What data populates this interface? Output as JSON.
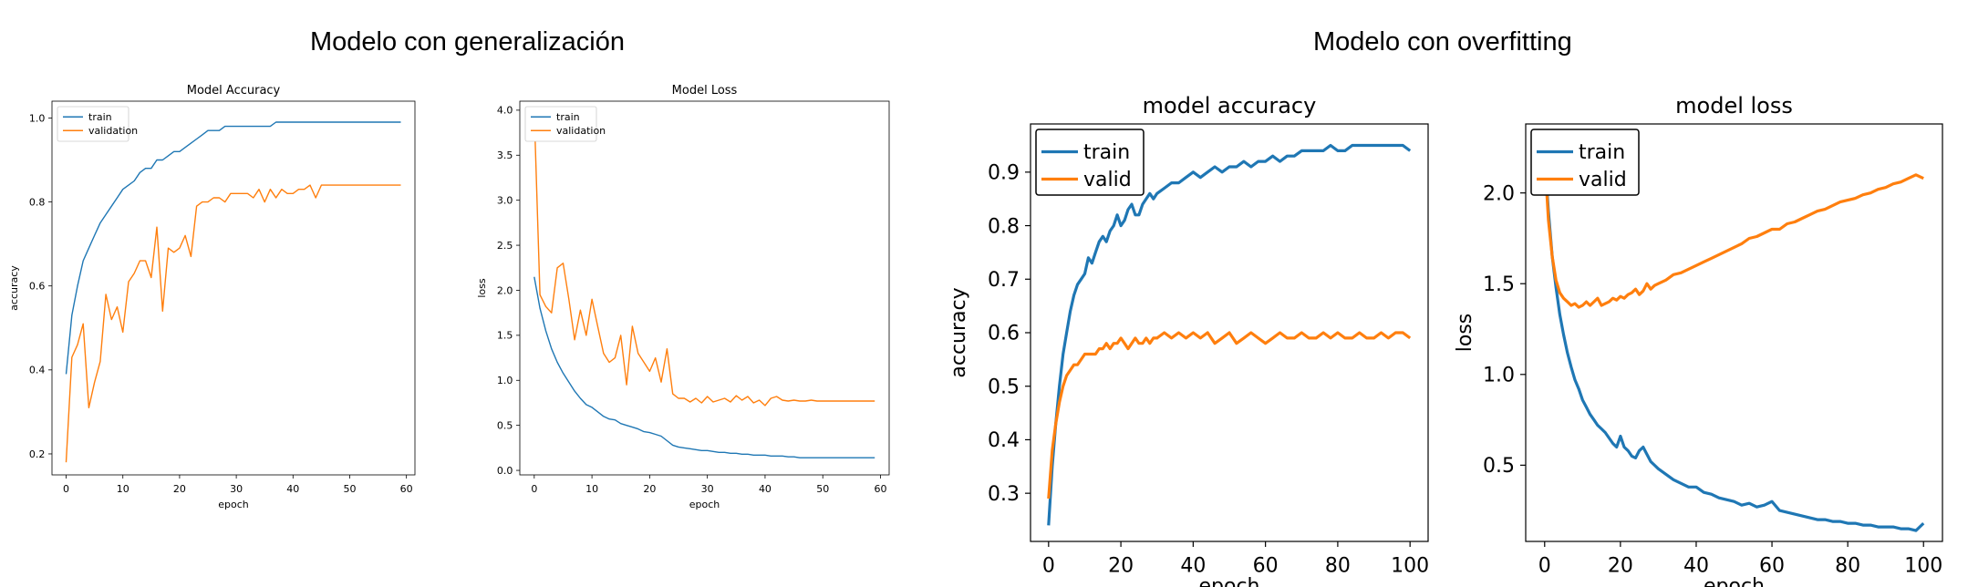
{
  "headings": {
    "left": "Modelo con generalización",
    "right": "Modelo con overfitting"
  },
  "colors": {
    "train": "#1f77b4",
    "validation": "#ff7f0e",
    "axis": "#000000"
  },
  "chart_data": [
    {
      "type": "line",
      "title": "Model Accuracy",
      "xlabel": "epoch",
      "ylabel": "accuracy",
      "xlim": [
        -2.5,
        61.5
      ],
      "ylim": [
        0.15,
        1.04
      ],
      "xticks": [
        0,
        10,
        20,
        30,
        40,
        50,
        60
      ],
      "yticks": [
        0.2,
        0.4,
        0.6,
        0.8,
        1.0
      ],
      "ytick_labels": [
        "0.2",
        "0.4",
        "0.6",
        "0.8",
        "1.0"
      ],
      "legend": "upper left",
      "grid": false,
      "series": [
        {
          "name": "train",
          "values": [
            0.39,
            0.53,
            0.6,
            0.66,
            0.69,
            0.72,
            0.75,
            0.77,
            0.79,
            0.81,
            0.83,
            0.84,
            0.85,
            0.87,
            0.88,
            0.88,
            0.9,
            0.9,
            0.91,
            0.92,
            0.92,
            0.93,
            0.94,
            0.95,
            0.96,
            0.97,
            0.97,
            0.97,
            0.98,
            0.98,
            0.98,
            0.98,
            0.98,
            0.98,
            0.98,
            0.98,
            0.98,
            0.99,
            0.99,
            0.99,
            0.99,
            0.99,
            0.99,
            0.99,
            0.99,
            0.99,
            0.99,
            0.99,
            0.99,
            0.99,
            0.99,
            0.99,
            0.99,
            0.99,
            0.99,
            0.99,
            0.99,
            0.99,
            0.99,
            0.99
          ]
        },
        {
          "name": "validation",
          "values": [
            0.18,
            0.43,
            0.46,
            0.51,
            0.31,
            0.37,
            0.42,
            0.58,
            0.52,
            0.55,
            0.49,
            0.61,
            0.63,
            0.66,
            0.66,
            0.62,
            0.74,
            0.54,
            0.69,
            0.68,
            0.69,
            0.72,
            0.67,
            0.79,
            0.8,
            0.8,
            0.81,
            0.81,
            0.8,
            0.82,
            0.82,
            0.82,
            0.82,
            0.81,
            0.83,
            0.8,
            0.83,
            0.81,
            0.83,
            0.82,
            0.82,
            0.83,
            0.83,
            0.84,
            0.81,
            0.84,
            0.84,
            0.84,
            0.84,
            0.84,
            0.84,
            0.84,
            0.84,
            0.84,
            0.84,
            0.84,
            0.84,
            0.84,
            0.84,
            0.84
          ]
        }
      ]
    },
    {
      "type": "line",
      "title": "Model Loss",
      "xlabel": "epoch",
      "ylabel": "loss",
      "xlim": [
        -2.5,
        61.5
      ],
      "ylim": [
        -0.05,
        4.1
      ],
      "xticks": [
        0,
        10,
        20,
        30,
        40,
        50,
        60
      ],
      "yticks": [
        0.0,
        0.5,
        1.0,
        1.5,
        2.0,
        2.5,
        3.0,
        3.5,
        4.0
      ],
      "ytick_labels": [
        "0.0",
        "0.5",
        "1.0",
        "1.5",
        "2.0",
        "2.5",
        "3.0",
        "3.5",
        "4.0"
      ],
      "legend": "upper left",
      "grid": false,
      "series": [
        {
          "name": "train",
          "values": [
            2.15,
            1.8,
            1.55,
            1.35,
            1.2,
            1.08,
            0.98,
            0.88,
            0.8,
            0.73,
            0.7,
            0.65,
            0.6,
            0.57,
            0.56,
            0.52,
            0.5,
            0.48,
            0.46,
            0.43,
            0.42,
            0.4,
            0.38,
            0.33,
            0.28,
            0.26,
            0.25,
            0.24,
            0.23,
            0.22,
            0.22,
            0.21,
            0.2,
            0.2,
            0.19,
            0.19,
            0.18,
            0.18,
            0.17,
            0.17,
            0.17,
            0.16,
            0.16,
            0.16,
            0.15,
            0.15,
            0.14,
            0.14,
            0.14,
            0.14,
            0.14,
            0.14,
            0.14,
            0.14,
            0.14,
            0.14,
            0.14,
            0.14,
            0.14,
            0.14
          ]
        },
        {
          "name": "validation",
          "values": [
            4.0,
            1.95,
            1.82,
            1.75,
            2.25,
            2.3,
            1.9,
            1.45,
            1.78,
            1.5,
            1.9,
            1.6,
            1.3,
            1.2,
            1.25,
            1.5,
            0.95,
            1.6,
            1.3,
            1.2,
            1.1,
            1.25,
            0.98,
            1.35,
            0.85,
            0.8,
            0.8,
            0.76,
            0.8,
            0.75,
            0.82,
            0.76,
            0.78,
            0.8,
            0.76,
            0.83,
            0.78,
            0.82,
            0.75,
            0.78,
            0.72,
            0.8,
            0.82,
            0.78,
            0.77,
            0.78,
            0.77,
            0.77,
            0.78,
            0.77,
            0.77,
            0.77,
            0.77,
            0.77,
            0.77,
            0.77,
            0.77,
            0.77,
            0.77,
            0.77
          ]
        }
      ]
    },
    {
      "type": "line",
      "title": "model accuracy",
      "xlabel": "epoch",
      "ylabel": "accuracy",
      "xlim": [
        -5,
        105
      ],
      "ylim": [
        0.21,
        0.99
      ],
      "xticks": [
        0,
        20,
        40,
        60,
        80,
        100
      ],
      "yticks": [
        0.3,
        0.4,
        0.5,
        0.6,
        0.7,
        0.8,
        0.9
      ],
      "ytick_labels": [
        "0.3",
        "0.4",
        "0.5",
        "0.6",
        "0.7",
        "0.8",
        "0.9"
      ],
      "legend": "upper left",
      "grid": false,
      "series": [
        {
          "name": "train",
          "x": [
            0,
            1,
            2,
            3,
            4,
            5,
            6,
            7,
            8,
            9,
            10,
            11,
            12,
            13,
            14,
            15,
            16,
            17,
            18,
            19,
            20,
            21,
            22,
            23,
            24,
            25,
            26,
            27,
            28,
            29,
            30,
            32,
            34,
            36,
            38,
            40,
            42,
            44,
            46,
            48,
            50,
            52,
            54,
            56,
            58,
            60,
            62,
            64,
            66,
            68,
            70,
            72,
            74,
            76,
            78,
            80,
            82,
            84,
            86,
            88,
            90,
            92,
            94,
            96,
            98,
            100
          ],
          "values": [
            0.24,
            0.35,
            0.43,
            0.5,
            0.56,
            0.6,
            0.64,
            0.67,
            0.69,
            0.7,
            0.71,
            0.74,
            0.73,
            0.75,
            0.77,
            0.78,
            0.77,
            0.79,
            0.8,
            0.82,
            0.8,
            0.81,
            0.83,
            0.84,
            0.82,
            0.82,
            0.84,
            0.85,
            0.86,
            0.85,
            0.86,
            0.87,
            0.88,
            0.88,
            0.89,
            0.9,
            0.89,
            0.9,
            0.91,
            0.9,
            0.91,
            0.91,
            0.92,
            0.91,
            0.92,
            0.92,
            0.93,
            0.92,
            0.93,
            0.93,
            0.94,
            0.94,
            0.94,
            0.94,
            0.95,
            0.94,
            0.94,
            0.95,
            0.95,
            0.95,
            0.95,
            0.95,
            0.95,
            0.95,
            0.95,
            0.94
          ]
        },
        {
          "name": "valid",
          "x": [
            0,
            1,
            2,
            3,
            4,
            5,
            6,
            7,
            8,
            9,
            10,
            11,
            12,
            13,
            14,
            15,
            16,
            17,
            18,
            19,
            20,
            21,
            22,
            23,
            24,
            25,
            26,
            27,
            28,
            29,
            30,
            32,
            34,
            36,
            38,
            40,
            42,
            44,
            46,
            48,
            50,
            52,
            54,
            56,
            58,
            60,
            62,
            64,
            66,
            68,
            70,
            72,
            74,
            76,
            78,
            80,
            82,
            84,
            86,
            88,
            90,
            92,
            94,
            96,
            98,
            100
          ],
          "values": [
            0.29,
            0.38,
            0.43,
            0.47,
            0.5,
            0.52,
            0.53,
            0.54,
            0.54,
            0.55,
            0.56,
            0.56,
            0.56,
            0.56,
            0.57,
            0.57,
            0.58,
            0.57,
            0.58,
            0.58,
            0.59,
            0.58,
            0.57,
            0.58,
            0.59,
            0.58,
            0.58,
            0.59,
            0.58,
            0.59,
            0.59,
            0.6,
            0.59,
            0.6,
            0.59,
            0.6,
            0.59,
            0.6,
            0.58,
            0.59,
            0.6,
            0.58,
            0.59,
            0.6,
            0.59,
            0.58,
            0.59,
            0.6,
            0.59,
            0.59,
            0.6,
            0.59,
            0.59,
            0.6,
            0.59,
            0.6,
            0.59,
            0.59,
            0.6,
            0.59,
            0.59,
            0.6,
            0.59,
            0.6,
            0.6,
            0.59
          ]
        }
      ]
    },
    {
      "type": "line",
      "title": "model loss",
      "xlabel": "epoch",
      "ylabel": "loss",
      "xlim": [
        -5,
        105
      ],
      "ylim": [
        0.08,
        2.38
      ],
      "xticks": [
        0,
        20,
        40,
        60,
        80,
        100
      ],
      "yticks": [
        0.5,
        1.0,
        1.5,
        2.0
      ],
      "ytick_labels": [
        "0.5",
        "1.0",
        "1.5",
        "2.0"
      ],
      "legend": "upper left",
      "grid": false,
      "series": [
        {
          "name": "train",
          "x": [
            0,
            1,
            2,
            3,
            4,
            5,
            6,
            7,
            8,
            9,
            10,
            11,
            12,
            13,
            14,
            15,
            16,
            17,
            18,
            19,
            20,
            21,
            22,
            23,
            24,
            25,
            26,
            27,
            28,
            29,
            30,
            32,
            34,
            36,
            38,
            40,
            42,
            44,
            46,
            48,
            50,
            52,
            54,
            56,
            58,
            60,
            62,
            64,
            66,
            68,
            70,
            72,
            74,
            76,
            78,
            80,
            82,
            84,
            86,
            88,
            90,
            92,
            94,
            96,
            98,
            100
          ],
          "values": [
            2.2,
            1.9,
            1.65,
            1.48,
            1.33,
            1.22,
            1.12,
            1.04,
            0.97,
            0.92,
            0.86,
            0.82,
            0.78,
            0.75,
            0.72,
            0.7,
            0.68,
            0.65,
            0.62,
            0.6,
            0.66,
            0.6,
            0.58,
            0.55,
            0.54,
            0.58,
            0.6,
            0.56,
            0.52,
            0.5,
            0.48,
            0.45,
            0.42,
            0.4,
            0.38,
            0.38,
            0.35,
            0.34,
            0.32,
            0.31,
            0.3,
            0.28,
            0.29,
            0.27,
            0.28,
            0.3,
            0.25,
            0.24,
            0.23,
            0.22,
            0.21,
            0.2,
            0.2,
            0.19,
            0.19,
            0.18,
            0.18,
            0.17,
            0.17,
            0.16,
            0.16,
            0.16,
            0.15,
            0.15,
            0.14,
            0.18
          ]
        },
        {
          "name": "valid",
          "x": [
            0,
            1,
            2,
            3,
            4,
            5,
            6,
            7,
            8,
            9,
            10,
            11,
            12,
            13,
            14,
            15,
            16,
            17,
            18,
            19,
            20,
            21,
            22,
            23,
            24,
            25,
            26,
            27,
            28,
            29,
            30,
            32,
            34,
            36,
            38,
            40,
            42,
            44,
            46,
            48,
            50,
            52,
            54,
            56,
            58,
            60,
            62,
            64,
            66,
            68,
            70,
            72,
            74,
            76,
            78,
            80,
            82,
            84,
            86,
            88,
            90,
            92,
            94,
            96,
            98,
            100
          ],
          "values": [
            2.2,
            1.85,
            1.65,
            1.52,
            1.45,
            1.42,
            1.4,
            1.38,
            1.39,
            1.37,
            1.38,
            1.4,
            1.38,
            1.4,
            1.42,
            1.38,
            1.39,
            1.4,
            1.42,
            1.41,
            1.43,
            1.42,
            1.44,
            1.45,
            1.47,
            1.44,
            1.46,
            1.5,
            1.47,
            1.49,
            1.5,
            1.52,
            1.55,
            1.56,
            1.58,
            1.6,
            1.62,
            1.64,
            1.66,
            1.68,
            1.7,
            1.72,
            1.75,
            1.76,
            1.78,
            1.8,
            1.8,
            1.83,
            1.84,
            1.86,
            1.88,
            1.9,
            1.91,
            1.93,
            1.95,
            1.96,
            1.97,
            1.99,
            2.0,
            2.02,
            2.03,
            2.05,
            2.06,
            2.08,
            2.1,
            2.08
          ]
        }
      ]
    }
  ]
}
